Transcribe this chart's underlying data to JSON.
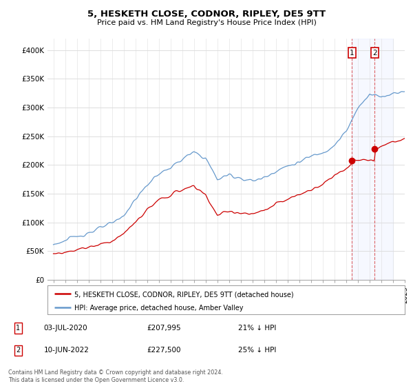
{
  "title": "5, HESKETH CLOSE, CODNOR, RIPLEY, DE5 9TT",
  "subtitle": "Price paid vs. HM Land Registry's House Price Index (HPI)",
  "ytick_labels": [
    "£0",
    "£50K",
    "£100K",
    "£150K",
    "£200K",
    "£250K",
    "£300K",
    "£350K",
    "£400K"
  ],
  "yticks": [
    0,
    50000,
    100000,
    150000,
    200000,
    250000,
    300000,
    350000,
    400000
  ],
  "legend_line1": "5, HESKETH CLOSE, CODNOR, RIPLEY, DE5 9TT (detached house)",
  "legend_line2": "HPI: Average price, detached house, Amber Valley",
  "line1_color": "#cc0000",
  "line2_color": "#6699cc",
  "annotation1_date": "03-JUL-2020",
  "annotation1_price": "£207,995",
  "annotation1_hpi": "21% ↓ HPI",
  "annotation2_date": "10-JUN-2022",
  "annotation2_price": "£227,500",
  "annotation2_hpi": "25% ↓ HPI",
  "footnote": "Contains HM Land Registry data © Crown copyright and database right 2024.\nThis data is licensed under the Open Government Licence v3.0.",
  "sale1_x": 2020.5,
  "sale1_y": 207995,
  "sale2_x": 2022.44,
  "sale2_y": 227500,
  "background_color": "#ffffff",
  "grid_color": "#dddddd",
  "shaded_region_start": 2020.5,
  "shaded_region_end": 2024.0,
  "xlim_left": 1994.5,
  "xlim_right": 2025.0,
  "ylim": [
    0,
    420000
  ]
}
